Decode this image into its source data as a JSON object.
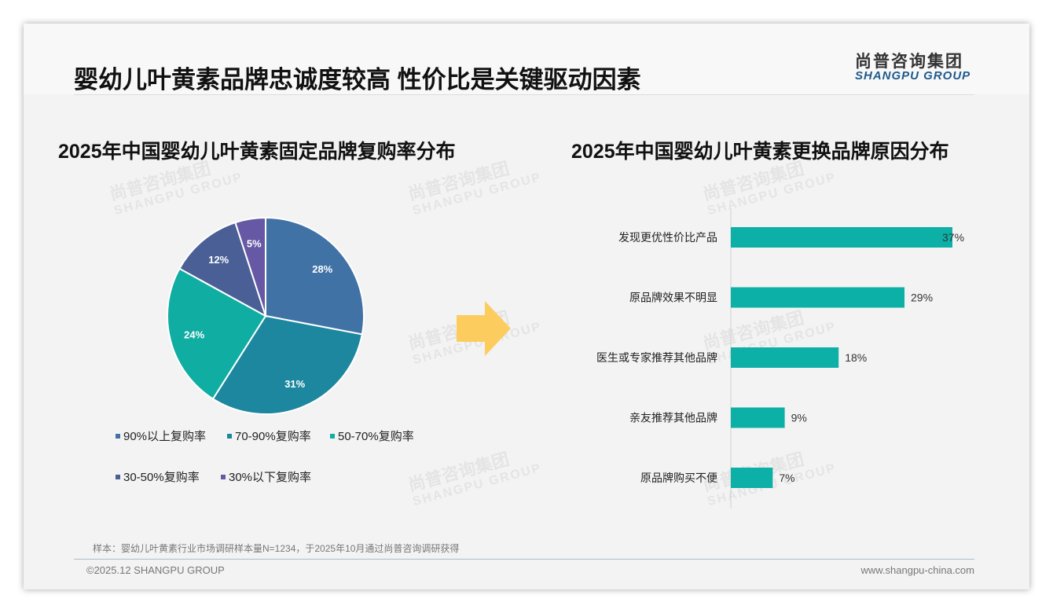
{
  "header": {
    "title": "婴幼儿叶黄素品牌忠诚度较高 性价比是关键驱动因素",
    "logo_cn": "尚普咨询集团",
    "logo_en": "SHANGPU GROUP"
  },
  "footer": {
    "note": "样本：婴幼儿叶黄素行业市场调研样本量N=1234，于2025年10月通过尚普咨询调研获得",
    "copyright": "©2025.12 SHANGPU GROUP",
    "url": "www.shangpu-china.com"
  },
  "arrow_icon": "right-arrow",
  "chart_data": [
    {
      "type": "pie",
      "title": "2025年中国婴幼儿叶黄素固定品牌复购率分布",
      "categories": [
        "90%以上复购率",
        "70-90%复购率",
        "50-70%复购率",
        "30-50%复购率",
        "30%以下复购率"
      ],
      "values": [
        28,
        31,
        24,
        12,
        5
      ],
      "labels": [
        "28%",
        "31%",
        "24%",
        "12%",
        "5%"
      ],
      "colors": [
        "#4072a6",
        "#1c879e",
        "#10ada2",
        "#4a5f96",
        "#6658a4"
      ],
      "legend": "bottom"
    },
    {
      "type": "bar",
      "orientation": "horizontal",
      "title": "2025年中国婴幼儿叶黄素更换品牌原因分布",
      "categories": [
        "发现更优性价比产品",
        "原品牌效果不明显",
        "医生或专家推荐其他品牌",
        "亲友推荐其他品牌",
        "原品牌购买不便"
      ],
      "values": [
        37,
        29,
        18,
        9,
        7
      ],
      "labels": [
        "37%",
        "29%",
        "18%",
        "9%",
        "7%"
      ],
      "color": "#0cb0a6",
      "xlim": [
        0,
        40
      ]
    }
  ]
}
